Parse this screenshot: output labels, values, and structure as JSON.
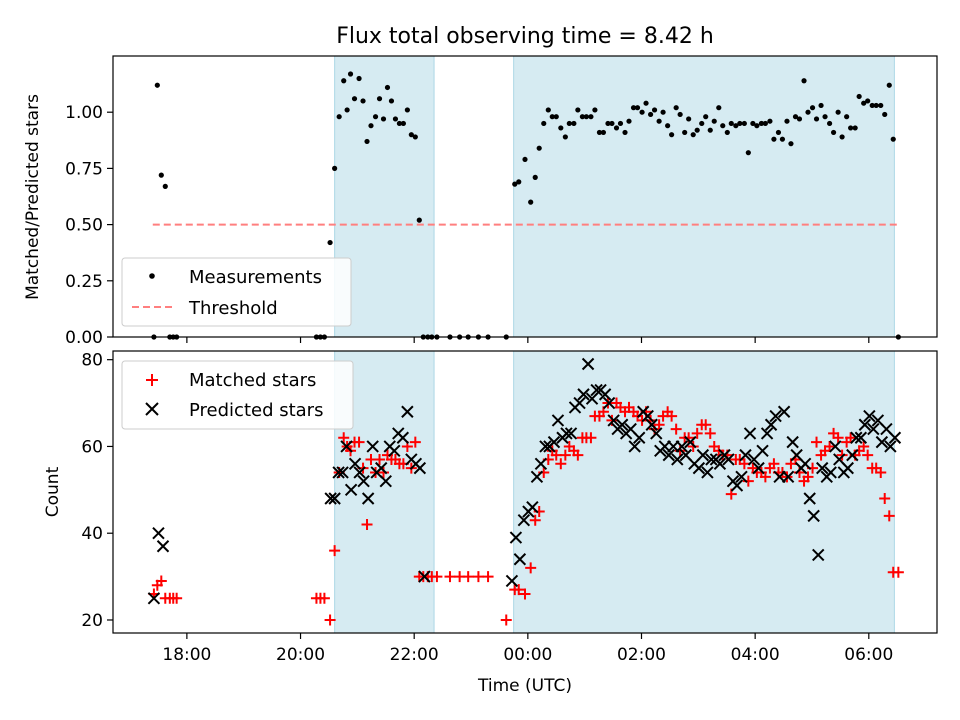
{
  "chart_data": [
    {
      "type": "scatter",
      "title": "Flux total observing time = 8.42 h",
      "xlabel": "",
      "ylabel": "Matched/Predicted stars",
      "xlim": [
        16.7,
        31.2
      ],
      "ylim": [
        0,
        1.25
      ],
      "yticks": [
        0,
        0.25,
        0.5,
        0.75,
        1.0
      ],
      "ytick_labels": [
        "0.00",
        "0.25",
        "0.50",
        "0.75",
        "1.00"
      ],
      "shaded_intervals": [
        [
          20.6,
          22.35
        ],
        [
          23.75,
          30.45
        ]
      ],
      "threshold": {
        "name": "Threshold",
        "y": 0.5,
        "x_range": [
          17.4,
          30.55
        ],
        "color": "#ff7f7f"
      },
      "legend": {
        "location": "lower-left",
        "entries": [
          "Measurements",
          "Threshold"
        ]
      },
      "series": [
        {
          "name": "Measurements",
          "x": [
            17.42,
            17.48,
            17.55,
            17.62,
            17.7,
            17.76,
            17.82,
            20.28,
            20.35,
            20.42,
            20.52,
            20.6,
            20.68,
            20.76,
            20.82,
            20.88,
            20.95,
            21.03,
            21.1,
            21.17,
            21.24,
            21.32,
            21.39,
            21.46,
            21.53,
            21.6,
            21.67,
            21.74,
            21.81,
            21.88,
            21.95,
            22.02,
            22.09,
            22.16,
            22.24,
            22.31,
            22.4,
            22.63,
            22.8,
            22.95,
            23.13,
            23.3,
            23.62,
            23.77,
            23.84,
            23.95,
            24.05,
            24.13,
            24.2,
            24.28,
            24.36,
            24.43,
            24.5,
            24.58,
            24.66,
            24.73,
            24.81,
            24.88,
            24.96,
            25.03,
            25.11,
            25.18,
            25.26,
            25.33,
            25.41,
            25.48,
            25.56,
            25.63,
            25.71,
            25.78,
            25.86,
            25.93,
            26.01,
            26.08,
            26.16,
            26.23,
            26.31,
            26.38,
            26.46,
            26.53,
            26.61,
            26.68,
            26.76,
            26.83,
            26.91,
            26.98,
            27.06,
            27.13,
            27.21,
            27.28,
            27.36,
            27.43,
            27.51,
            27.58,
            27.66,
            27.73,
            27.81,
            27.88,
            27.96,
            28.03,
            28.11,
            28.18,
            28.26,
            28.33,
            28.41,
            28.48,
            28.56,
            28.63,
            28.71,
            28.78,
            28.86,
            28.93,
            29.01,
            29.08,
            29.16,
            29.23,
            29.31,
            29.38,
            29.46,
            29.53,
            29.61,
            29.68,
            29.76,
            29.83,
            29.91,
            29.98,
            30.06,
            30.13,
            30.21,
            30.28,
            30.36,
            30.43,
            30.52
          ],
          "y": [
            0.0,
            1.12,
            0.72,
            0.67,
            0.0,
            0.0,
            0.0,
            0.0,
            0.0,
            0.0,
            0.42,
            0.75,
            0.98,
            1.14,
            1.01,
            1.17,
            1.06,
            1.15,
            1.05,
            0.87,
            0.94,
            0.98,
            1.06,
            0.97,
            1.11,
            1.05,
            0.97,
            0.95,
            0.95,
            1.01,
            0.9,
            0.89,
            0.52,
            0.0,
            0.0,
            0.0,
            0.0,
            0.0,
            0.0,
            0.0,
            0.0,
            0.0,
            0.0,
            0.68,
            0.69,
            0.79,
            0.6,
            0.71,
            0.84,
            0.95,
            1.01,
            0.98,
            0.98,
            0.93,
            0.89,
            0.95,
            0.95,
            1.01,
            0.98,
            0.98,
            0.98,
            1.01,
            0.91,
            0.91,
            0.95,
            0.95,
            0.93,
            0.95,
            0.91,
            0.96,
            1.02,
            1.02,
            1.0,
            1.04,
            0.99,
            1.01,
            0.96,
            1.0,
            0.94,
            0.9,
            1.02,
            0.99,
            0.91,
            0.97,
            0.9,
            0.92,
            0.95,
            0.98,
            0.92,
            0.96,
            1.02,
            0.94,
            0.91,
            0.95,
            0.94,
            0.95,
            0.95,
            0.82,
            0.95,
            0.94,
            0.95,
            0.95,
            0.96,
            0.88,
            0.91,
            0.88,
            0.96,
            0.86,
            0.98,
            0.97,
            1.14,
            1.0,
            1.02,
            0.97,
            1.03,
            0.98,
            0.95,
            0.91,
            1.0,
            0.89,
            0.98,
            0.93,
            0.93,
            1.07,
            1.04,
            1.05,
            1.03,
            1.03,
            1.03,
            0.99,
            1.12,
            0.88,
            0.0
          ],
          "marker": "dot",
          "color": "#000000"
        }
      ]
    },
    {
      "type": "scatter",
      "title": "",
      "xlabel": "Time (UTC)",
      "ylabel": "Count",
      "xlim": [
        16.7,
        31.2
      ],
      "ylim": [
        17,
        82
      ],
      "yticks": [
        20,
        40,
        60,
        80
      ],
      "ytick_labels": [
        "20",
        "40",
        "60",
        "80"
      ],
      "xticks": [
        18,
        20,
        22,
        24,
        26,
        28,
        30
      ],
      "xtick_labels": [
        "18:00",
        "20:00",
        "22:00",
        "00:00",
        "02:00",
        "04:00",
        "06:00"
      ],
      "shaded_intervals": [
        [
          20.6,
          22.35
        ],
        [
          23.75,
          30.45
        ]
      ],
      "legend": {
        "location": "top-left",
        "entries": [
          "Matched stars",
          "Predicted stars"
        ]
      },
      "series": [
        {
          "name": "Matched stars",
          "marker": "plus",
          "color": "#ff0000",
          "x": [
            17.42,
            17.48,
            17.55,
            17.62,
            17.7,
            17.76,
            17.82,
            20.28,
            20.35,
            20.42,
            20.52,
            20.6,
            20.68,
            20.76,
            20.82,
            20.88,
            20.95,
            21.03,
            21.1,
            21.17,
            21.24,
            21.32,
            21.39,
            21.46,
            21.53,
            21.6,
            21.67,
            21.74,
            21.81,
            21.88,
            21.95,
            22.02,
            22.09,
            22.16,
            22.24,
            22.31,
            22.4,
            22.63,
            22.8,
            22.95,
            23.13,
            23.3,
            23.62,
            23.77,
            23.84,
            23.95,
            24.05,
            24.13,
            24.2,
            24.28,
            24.36,
            24.43,
            24.5,
            24.58,
            24.66,
            24.73,
            24.81,
            24.88,
            24.96,
            25.03,
            25.11,
            25.18,
            25.26,
            25.33,
            25.41,
            25.48,
            25.56,
            25.63,
            25.71,
            25.78,
            25.86,
            25.93,
            26.01,
            26.08,
            26.16,
            26.23,
            26.31,
            26.38,
            26.46,
            26.53,
            26.61,
            26.68,
            26.76,
            26.83,
            26.91,
            26.98,
            27.06,
            27.13,
            27.21,
            27.28,
            27.36,
            27.43,
            27.51,
            27.58,
            27.66,
            27.73,
            27.81,
            27.88,
            27.96,
            28.03,
            28.11,
            28.18,
            28.26,
            28.33,
            28.41,
            28.48,
            28.56,
            28.63,
            28.71,
            28.78,
            28.86,
            28.93,
            29.01,
            29.08,
            29.16,
            29.23,
            29.31,
            29.38,
            29.46,
            29.53,
            29.61,
            29.68,
            29.76,
            29.83,
            29.91,
            29.98,
            30.06,
            30.13,
            30.21,
            30.28,
            30.36,
            30.43,
            30.52
          ],
          "y": [
            26,
            28,
            29,
            25,
            25,
            25,
            25,
            25,
            25,
            25,
            20,
            36,
            54,
            62,
            60,
            59,
            61,
            61,
            55,
            42,
            57,
            54,
            57,
            54,
            58,
            57,
            57,
            56,
            56,
            60,
            55,
            61,
            30,
            30,
            30,
            30,
            30,
            30,
            30,
            30,
            30,
            30,
            20,
            27,
            27,
            26,
            32,
            43,
            45,
            54,
            57,
            59,
            58,
            56,
            58,
            60,
            59,
            58,
            62,
            62,
            62,
            67,
            67,
            68,
            70,
            66,
            70,
            69,
            68,
            69,
            68,
            67,
            66,
            68,
            66,
            64,
            65,
            67,
            68,
            67,
            64,
            59,
            62,
            62,
            60,
            63,
            65,
            65,
            63,
            60,
            59,
            58,
            58,
            49,
            57,
            57,
            56,
            52,
            55,
            54,
            54,
            53,
            55,
            56,
            54,
            54,
            53,
            56,
            57,
            54,
            52,
            53,
            55,
            61,
            58,
            59,
            60,
            63,
            62,
            58,
            61,
            62,
            58,
            59,
            60,
            58,
            55,
            55,
            54,
            48,
            44,
            31,
            31
          ]
        },
        {
          "name": "Predicted stars",
          "marker": "x",
          "color": "#000000",
          "x": [
            17.42,
            17.5,
            17.58,
            20.53,
            20.6,
            20.67,
            20.74,
            20.81,
            20.89,
            20.96,
            21.04,
            21.11,
            21.19,
            21.27,
            21.34,
            21.42,
            21.5,
            21.57,
            21.65,
            21.72,
            21.8,
            21.88,
            21.95,
            22.03,
            22.1,
            22.18,
            23.72,
            23.79,
            23.86,
            23.93,
            24.01,
            24.08,
            24.16,
            24.23,
            24.31,
            24.38,
            24.46,
            24.53,
            24.61,
            24.68,
            24.76,
            24.83,
            24.91,
            24.98,
            25.06,
            25.13,
            25.21,
            25.28,
            25.36,
            25.43,
            25.51,
            25.58,
            25.66,
            25.73,
            25.81,
            25.88,
            25.96,
            26.03,
            26.11,
            26.18,
            26.26,
            26.33,
            26.41,
            26.48,
            26.56,
            26.63,
            26.71,
            26.78,
            26.86,
            26.93,
            27.01,
            27.08,
            27.16,
            27.23,
            27.31,
            27.38,
            27.46,
            27.53,
            27.61,
            27.68,
            27.76,
            27.83,
            27.91,
            27.98,
            28.06,
            28.13,
            28.21,
            28.28,
            28.36,
            28.43,
            28.51,
            28.58,
            28.66,
            28.73,
            28.81,
            28.88,
            28.96,
            29.03,
            29.11,
            29.18,
            29.26,
            29.33,
            29.41,
            29.48,
            29.56,
            29.63,
            29.71,
            29.78,
            29.86,
            29.93,
            30.01,
            30.08,
            30.16,
            30.23,
            30.31,
            30.38,
            30.46
          ],
          "y": [
            25,
            40,
            37,
            48,
            48,
            54,
            54,
            60,
            50,
            56,
            54,
            52,
            48,
            60,
            54,
            55,
            52,
            60,
            59,
            63,
            62,
            68,
            57,
            56,
            55,
            30,
            29,
            39,
            34,
            43,
            45,
            46,
            53,
            56,
            60,
            60,
            61,
            66,
            62,
            63,
            63,
            69,
            70,
            72,
            79,
            71,
            73,
            73,
            72,
            70,
            66,
            64,
            65,
            63,
            64,
            60,
            62,
            68,
            67,
            65,
            63,
            59,
            60,
            58,
            60,
            57,
            60,
            58,
            61,
            56,
            55,
            58,
            54,
            57,
            57,
            56,
            58,
            57,
            52,
            51,
            53,
            58,
            63,
            57,
            55,
            59,
            63,
            65,
            67,
            53,
            68,
            53,
            61,
            58,
            55,
            56,
            48,
            44,
            35,
            55,
            53,
            54,
            60,
            57,
            54,
            55,
            58,
            62,
            62,
            65,
            67,
            64,
            66,
            61,
            64,
            60,
            62
          ]
        }
      ]
    }
  ]
}
